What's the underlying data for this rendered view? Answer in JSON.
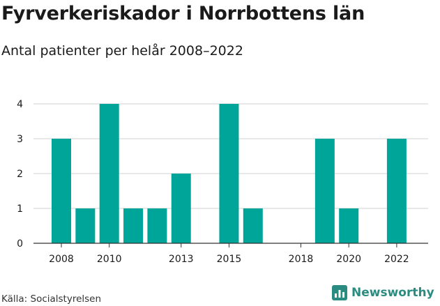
{
  "header": {
    "title": "Fyrverkeriskador i Norrbottens län",
    "subtitle": "Antal patienter per helår 2008–2022"
  },
  "footer": {
    "source": "Källa: Socialstyrelsen",
    "brand": "Newsworthy",
    "brand_icon": "bar-chart-icon"
  },
  "chart_data": {
    "type": "bar",
    "title": "Fyrverkeriskador i Norrbottens län",
    "subtitle": "Antal patienter per helår 2008–2022",
    "categories": [
      2008,
      2009,
      2010,
      2011,
      2012,
      2013,
      2014,
      2015,
      2016,
      2017,
      2018,
      2019,
      2020,
      2021,
      2022
    ],
    "values": [
      3,
      1,
      4,
      1,
      1,
      2,
      0,
      4,
      1,
      0,
      0,
      3,
      1,
      0,
      3
    ],
    "x_tick_labels": [
      "2008",
      "2010",
      "2013",
      "2015",
      "2018",
      "2020",
      "2022"
    ],
    "y_ticks": [
      0,
      1,
      2,
      3,
      4
    ],
    "ylim": [
      0,
      4
    ],
    "grid": true,
    "bar_color": "#00a59a",
    "xlabel": "",
    "ylabel": ""
  }
}
